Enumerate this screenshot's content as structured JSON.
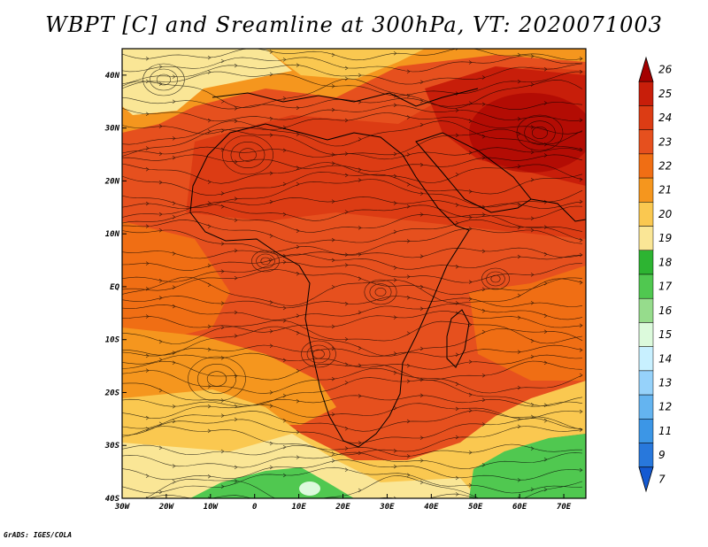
{
  "title": "WBPT [C] and Sreamline at 300hPa, VT: 2020071003",
  "footer": "GrADS: IGES/COLA",
  "map": {
    "lon_range": [
      -30,
      75
    ],
    "lat_range": [
      -40,
      45
    ],
    "lon_ticks": [
      {
        "value": -30,
        "label": "30W"
      },
      {
        "value": -20,
        "label": "20W"
      },
      {
        "value": -10,
        "label": "10W"
      },
      {
        "value": 0,
        "label": "0"
      },
      {
        "value": 10,
        "label": "10E"
      },
      {
        "value": 20,
        "label": "20E"
      },
      {
        "value": 30,
        "label": "30E"
      },
      {
        "value": 40,
        "label": "40E"
      },
      {
        "value": 50,
        "label": "50E"
      },
      {
        "value": 60,
        "label": "60E"
      },
      {
        "value": 70,
        "label": "70E"
      }
    ],
    "lat_ticks": [
      {
        "value": 40,
        "label": "40N"
      },
      {
        "value": 30,
        "label": "30N"
      },
      {
        "value": 20,
        "label": "20N"
      },
      {
        "value": 10,
        "label": "10N"
      },
      {
        "value": 0,
        "label": "EQ"
      },
      {
        "value": -10,
        "label": "10S"
      },
      {
        "value": -20,
        "label": "20S"
      },
      {
        "value": -30,
        "label": "30S"
      },
      {
        "value": -40,
        "label": "40S"
      }
    ]
  },
  "colorbar": {
    "levels": [
      "26",
      "25",
      "24",
      "23",
      "22",
      "21",
      "20",
      "19",
      "18",
      "17",
      "16",
      "15",
      "14",
      "13",
      "12",
      "11",
      "9",
      "7"
    ],
    "colors": [
      "#a50000",
      "#c81e0a",
      "#dc3c14",
      "#e6501e",
      "#f06e14",
      "#f5961e",
      "#fac850",
      "#fae696",
      "#2db432",
      "#50c850",
      "#96dc8c",
      "#dcfadc",
      "#c8f0ff",
      "#96d2fa",
      "#64b4f0",
      "#3c96e6",
      "#2878dc",
      "#145ad2"
    ]
  }
}
